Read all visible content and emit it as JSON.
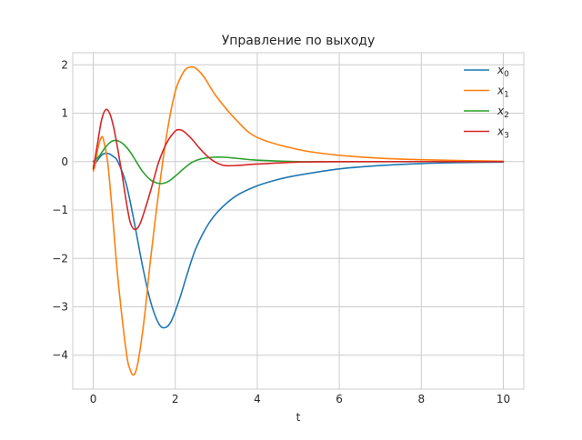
{
  "chart_data": {
    "type": "line",
    "title": "Управление по выходу",
    "xlabel": "t",
    "ylabel": "",
    "xlim": [
      -0.5,
      10.5
    ],
    "ylim": [
      -4.7,
      2.25
    ],
    "grid": true,
    "legend_position": "top-right",
    "xticks": [
      0,
      2,
      4,
      6,
      8,
      10
    ],
    "yticks": [
      2,
      1,
      0,
      -1,
      -2,
      -3,
      -4
    ],
    "xtick_labels": [
      "0",
      "2",
      "4",
      "6",
      "8",
      "10"
    ],
    "ytick_labels": [
      "2",
      "1",
      "0",
      "−1",
      "−2",
      "−3",
      "−4"
    ],
    "series": [
      {
        "name": "x",
        "sub": "0",
        "color": "#1f77b4",
        "x": [
          0,
          0.2,
          0.35,
          0.5,
          0.6,
          0.8,
          1.0,
          1.2,
          1.4,
          1.6,
          1.75,
          1.9,
          2.1,
          2.3,
          2.5,
          2.8,
          3.1,
          3.5,
          4.0,
          4.5,
          5.0,
          6.0,
          7.0,
          8.0,
          9.0,
          10.0
        ],
        "y": [
          -0.1,
          0.13,
          0.17,
          0.1,
          0.0,
          -0.45,
          -1.25,
          -2.15,
          -2.9,
          -3.35,
          -3.43,
          -3.3,
          -2.85,
          -2.3,
          -1.8,
          -1.3,
          -0.98,
          -0.7,
          -0.5,
          -0.37,
          -0.28,
          -0.15,
          -0.08,
          -0.04,
          -0.02,
          -0.01
        ]
      },
      {
        "name": "x",
        "sub": "1",
        "color": "#ff7f0e",
        "x": [
          0,
          0.05,
          0.12,
          0.2,
          0.25,
          0.35,
          0.45,
          0.6,
          0.8,
          0.9,
          1.0,
          1.1,
          1.25,
          1.4,
          1.6,
          1.8,
          2.0,
          2.2,
          2.35,
          2.5,
          2.7,
          3.0,
          3.5,
          4.0,
          5.0,
          6.0,
          7.0,
          8.0,
          9.0,
          10.0
        ],
        "y": [
          -0.2,
          -0.05,
          0.3,
          0.5,
          0.45,
          0.0,
          -0.9,
          -2.4,
          -3.9,
          -4.3,
          -4.4,
          -4.1,
          -3.2,
          -2.0,
          -0.6,
          0.6,
          1.45,
          1.85,
          1.95,
          1.93,
          1.75,
          1.35,
          0.85,
          0.5,
          0.25,
          0.13,
          0.07,
          0.04,
          0.02,
          0.01
        ]
      },
      {
        "name": "x",
        "sub": "2",
        "color": "#2ca02c",
        "x": [
          0,
          0.15,
          0.3,
          0.45,
          0.6,
          0.75,
          0.9,
          1.05,
          1.2,
          1.4,
          1.55,
          1.7,
          1.85,
          2.0,
          2.2,
          2.4,
          2.6,
          2.9,
          3.2,
          3.6,
          4.0,
          5.0,
          6.0,
          7.0,
          10.0
        ],
        "y": [
          0.0,
          0.12,
          0.3,
          0.42,
          0.43,
          0.35,
          0.2,
          0.0,
          -0.2,
          -0.38,
          -0.44,
          -0.45,
          -0.4,
          -0.3,
          -0.15,
          -0.02,
          0.05,
          0.09,
          0.09,
          0.06,
          0.03,
          0.0,
          0.0,
          0.0,
          0.0
        ]
      },
      {
        "name": "x",
        "sub": "3",
        "color": "#d62728",
        "x": [
          0,
          0.1,
          0.2,
          0.3,
          0.4,
          0.5,
          0.6,
          0.7,
          0.8,
          0.9,
          1.0,
          1.1,
          1.2,
          1.4,
          1.6,
          1.8,
          2.0,
          2.1,
          2.2,
          2.4,
          2.6,
          2.8,
          3.0,
          3.2,
          3.5,
          4.0,
          5.0,
          6.0,
          10.0
        ],
        "y": [
          -0.15,
          0.35,
          0.85,
          1.07,
          1.0,
          0.7,
          0.25,
          -0.25,
          -0.8,
          -1.25,
          -1.4,
          -1.35,
          -1.15,
          -0.6,
          0.0,
          0.4,
          0.63,
          0.66,
          0.63,
          0.47,
          0.27,
          0.1,
          -0.02,
          -0.08,
          -0.08,
          -0.05,
          -0.01,
          0.0,
          0.0
        ]
      }
    ]
  }
}
